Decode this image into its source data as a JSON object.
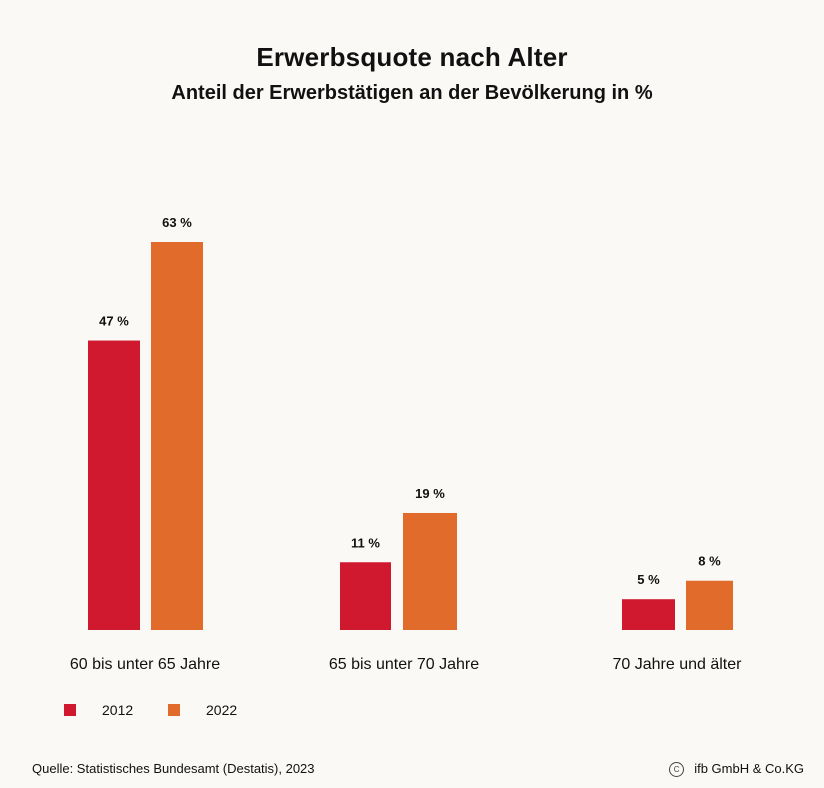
{
  "chart_data": {
    "type": "bar",
    "title": "Erwerbsquote nach Alter",
    "subtitle": "Anteil der Erwerbstätigen an der Bevölkerung in %",
    "categories": [
      "60 bis unter 65 Jahre",
      "65 bis unter 70 Jahre",
      "70 Jahre und älter"
    ],
    "series": [
      {
        "name": "2012",
        "values": [
          47,
          11,
          5
        ],
        "labels": [
          "47 %",
          "11 %",
          "5 %"
        ],
        "color": "#d0192e"
      },
      {
        "name": "2022",
        "values": [
          63,
          19,
          8
        ],
        "labels": [
          "63 %",
          "19 %",
          "8 %"
        ],
        "color": "#e06b2b"
      }
    ],
    "ylim": [
      0,
      65
    ],
    "grid": false,
    "legend": "bottom-left",
    "xlabel": "",
    "ylabel": ""
  },
  "footer": {
    "source": "Quelle: Statistisches Bundesamt (Destatis), 2023",
    "copyright_symbol": "C",
    "copyright": "ifb GmbH & Co.KG"
  }
}
